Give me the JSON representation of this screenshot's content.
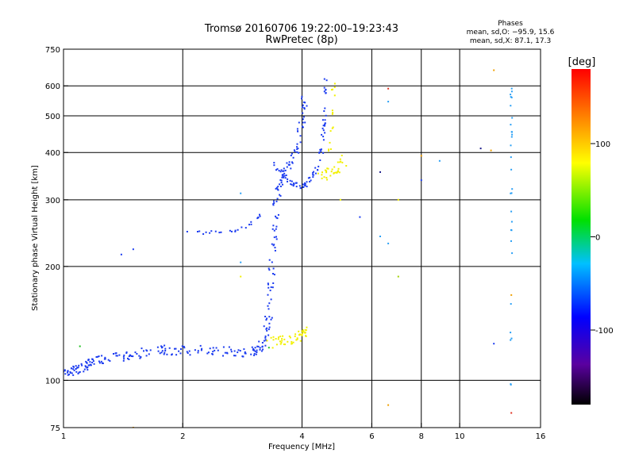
{
  "chart_data": {
    "type": "scatter",
    "title": "Tromsø 20160706 19:22:00–19:23:43",
    "subtitle": "RwPretec (8p)",
    "xlabel": "Frequency [MHz]",
    "ylabel": "Stationary phase Virtual Height [km]",
    "x_scale": "log",
    "y_scale": "log",
    "xlim": [
      1,
      16
    ],
    "ylim": [
      75,
      750
    ],
    "x_ticks": [
      1,
      2,
      4,
      6,
      8,
      10,
      16
    ],
    "y_ticks": [
      75,
      100,
      200,
      300,
      400,
      500,
      600,
      750
    ],
    "x_gridlines": [
      2,
      4,
      6,
      8,
      10
    ],
    "y_gridlines": [
      100,
      200,
      300,
      400,
      500,
      600
    ],
    "grid": true,
    "phase_info": {
      "heading": "Phases",
      "line1": "mean, sd,O: −95.9, 15.6",
      "line2": "mean, sd,X:  87.1, 17.3"
    },
    "colorbar": {
      "label": "[deg]",
      "ticks": [
        100,
        0,
        -100
      ],
      "range": [
        -180,
        180
      ],
      "colormap": "rainbow"
    },
    "curves": [
      {
        "points": [
          [
            1.0,
            103
          ],
          [
            1.05,
            106
          ],
          [
            1.1,
            108
          ],
          [
            1.15,
            110
          ],
          [
            1.2,
            112
          ],
          [
            1.3,
            114
          ],
          [
            1.45,
            116
          ],
          [
            1.6,
            118
          ],
          [
            1.8,
            120
          ],
          [
            2.0,
            120
          ],
          [
            2.3,
            120
          ],
          [
            2.6,
            119
          ],
          [
            2.9,
            119
          ],
          [
            3.1,
            120
          ],
          [
            3.2,
            125
          ],
          [
            3.3,
            145
          ],
          [
            3.35,
            180
          ],
          [
            3.4,
            240
          ],
          [
            3.45,
            300
          ],
          [
            3.55,
            340
          ],
          [
            3.7,
            370
          ],
          [
            3.85,
            400
          ],
          [
            4.0,
            480
          ],
          [
            4.05,
            560
          ]
        ],
        "color": "#1c3cf0",
        "spread": 0.02,
        "density": 14
      },
      {
        "points": [
          [
            2.05,
            248
          ],
          [
            2.3,
            246
          ],
          [
            2.6,
            246
          ],
          [
            2.8,
            250
          ],
          [
            3.0,
            262
          ],
          [
            3.15,
            275
          ]
        ],
        "color": "#1c3cf0",
        "spread": 0.008,
        "density": 5
      },
      {
        "points": [
          [
            3.4,
            375
          ],
          [
            3.6,
            345
          ],
          [
            3.8,
            330
          ],
          [
            3.95,
            325
          ],
          [
            4.1,
            330
          ],
          [
            4.25,
            345
          ],
          [
            4.4,
            370
          ],
          [
            4.5,
            410
          ],
          [
            4.55,
            480
          ],
          [
            4.6,
            560
          ],
          [
            4.6,
            630
          ]
        ],
        "color": "#1c3cf0",
        "spread": 0.01,
        "density": 8
      },
      {
        "points": [
          [
            3.3,
            125
          ],
          [
            3.5,
            127
          ],
          [
            3.7,
            128
          ],
          [
            3.9,
            130
          ],
          [
            4.0,
            133
          ],
          [
            4.1,
            136
          ]
        ],
        "color": "#f2f000",
        "spread": 0.02,
        "density": 10
      },
      {
        "points": [
          [
            4.4,
            345
          ],
          [
            4.6,
            350
          ],
          [
            4.8,
            358
          ],
          [
            5.0,
            365
          ],
          [
            5.1,
            380
          ]
        ],
        "color": "#f2f000",
        "spread": 0.025,
        "density": 8
      },
      {
        "points": [
          [
            4.7,
            400
          ],
          [
            4.75,
            460
          ],
          [
            4.8,
            530
          ],
          [
            4.8,
            630
          ]
        ],
        "color": "#f2f000",
        "spread": 0.01,
        "density": 5
      },
      {
        "points": [
          [
            13.5,
            90
          ],
          [
            13.5,
            150
          ],
          [
            13.5,
            250
          ],
          [
            13.5,
            350
          ],
          [
            13.5,
            450
          ],
          [
            13.5,
            550
          ],
          [
            13.5,
            620
          ]
        ],
        "color": "#2aa0f5",
        "spread": 0.005,
        "density": 5
      }
    ],
    "isolated_points": [
      {
        "x": 1.1,
        "y": 123,
        "color": "#20c020"
      },
      {
        "x": 1.4,
        "y": 215,
        "color": "#1c3cf0"
      },
      {
        "x": 1.5,
        "y": 222,
        "color": "#1c3cf0"
      },
      {
        "x": 1.5,
        "y": 75,
        "color": "#f0a000"
      },
      {
        "x": 2.8,
        "y": 312,
        "color": "#2aa0f5"
      },
      {
        "x": 2.8,
        "y": 205,
        "color": "#2aa0f5"
      },
      {
        "x": 2.8,
        "y": 188,
        "color": "#f2f000"
      },
      {
        "x": 3.3,
        "y": 122,
        "color": "#20c020"
      },
      {
        "x": 5.0,
        "y": 300,
        "color": "#f2f000"
      },
      {
        "x": 5.6,
        "y": 270,
        "color": "#1c3cf0"
      },
      {
        "x": 6.3,
        "y": 355,
        "color": "#1c1c8a"
      },
      {
        "x": 6.3,
        "y": 240,
        "color": "#2aa0f5"
      },
      {
        "x": 6.6,
        "y": 590,
        "color": "#e03020"
      },
      {
        "x": 6.6,
        "y": 545,
        "color": "#2aa0f5"
      },
      {
        "x": 6.6,
        "y": 230,
        "color": "#2aa0f5"
      },
      {
        "x": 6.6,
        "y": 86,
        "color": "#f0a000"
      },
      {
        "x": 7.0,
        "y": 300,
        "color": "#f2f000"
      },
      {
        "x": 7.0,
        "y": 188,
        "color": "#a0d000"
      },
      {
        "x": 8.0,
        "y": 338,
        "color": "#1c3cf0"
      },
      {
        "x": 8.0,
        "y": 392,
        "color": "#f0a000"
      },
      {
        "x": 8.9,
        "y": 380,
        "color": "#2aa0f5"
      },
      {
        "x": 11.3,
        "y": 410,
        "color": "#1c1c8a"
      },
      {
        "x": 12.0,
        "y": 405,
        "color": "#f0a000"
      },
      {
        "x": 12.2,
        "y": 660,
        "color": "#f0a000"
      },
      {
        "x": 12.2,
        "y": 125,
        "color": "#1c3cf0"
      },
      {
        "x": 13.5,
        "y": 82,
        "color": "#e03020"
      },
      {
        "x": 13.5,
        "y": 168,
        "color": "#f0a000"
      }
    ]
  }
}
